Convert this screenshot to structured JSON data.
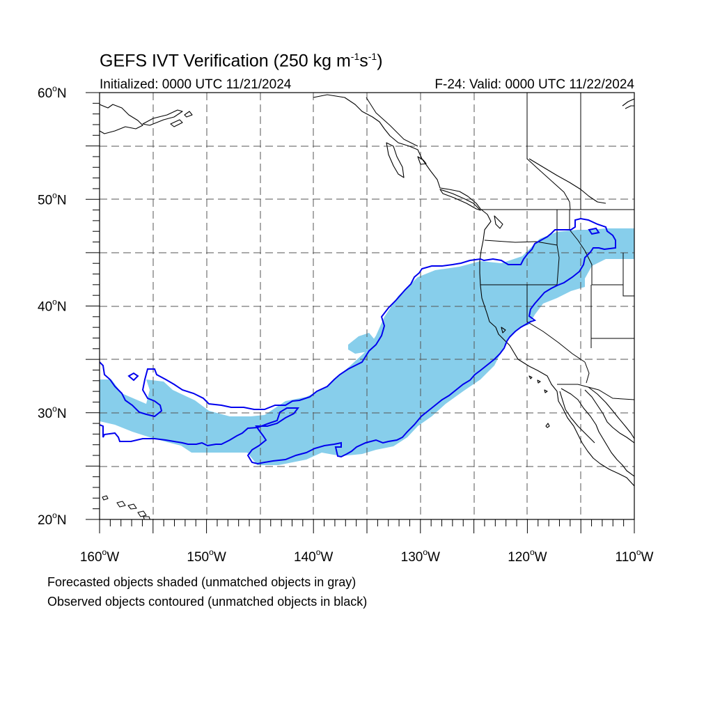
{
  "header": {
    "title_prefix": "GEFS IVT Verification (250 kg m",
    "title_sup1": "-1",
    "title_mid": "s",
    "title_sup2": "-1",
    "title_suffix": ")",
    "initialized": "Initialized: 0000 UTC 11/21/2024",
    "valid": "F-24: Valid: 0000 UTC 11/22/2024"
  },
  "footer": {
    "forecast_note": "Forecasted objects shaded (unmatched objects in gray)",
    "observed_note": "Observed objects contoured (unmatched objects in black)"
  },
  "map": {
    "lon_range": [
      -160,
      -110
    ],
    "lat_range": [
      20,
      60
    ],
    "grid_lines": "dashed",
    "lat_ticks": [
      {
        "value": 60,
        "deg": "60",
        "hemi": "N"
      },
      {
        "value": 50,
        "deg": "50",
        "hemi": "N"
      },
      {
        "value": 40,
        "deg": "40",
        "hemi": "N"
      },
      {
        "value": 30,
        "deg": "30",
        "hemi": "N"
      },
      {
        "value": 20,
        "deg": "20",
        "hemi": "N"
      }
    ],
    "lon_ticks": [
      {
        "value": -160,
        "deg": "160",
        "hemi": "W"
      },
      {
        "value": -150,
        "deg": "150",
        "hemi": "W"
      },
      {
        "value": -140,
        "deg": "140",
        "hemi": "W"
      },
      {
        "value": -130,
        "deg": "130",
        "hemi": "W"
      },
      {
        "value": -120,
        "deg": "120",
        "hemi": "W"
      },
      {
        "value": -110,
        "deg": "110",
        "hemi": "W"
      }
    ],
    "colors": {
      "forecast_fill": "#87ceeb",
      "observed_outline": "#0000ee",
      "coastline": "#000000",
      "grid": "#555555"
    }
  }
}
